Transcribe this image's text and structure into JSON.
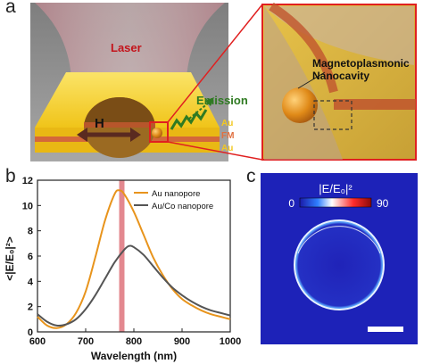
{
  "panels": {
    "a": "a",
    "b": "b",
    "c": "c"
  },
  "panel_a": {
    "laser_label": "Laser",
    "emission_label": "Emission",
    "field_label": "H",
    "layer_labels": [
      "Au",
      "FM",
      "Au"
    ],
    "inset_label": [
      "Magnetoplasmonic",
      "Nanocavity"
    ],
    "colors": {
      "gold": "#f2cf2a",
      "fm_layer": "#d8703a",
      "laser_text": "#c4141b",
      "emission_text": "#2f7a22",
      "beam": "#c89aa0",
      "background": "#8f8f8f"
    }
  },
  "chart_data": {
    "type": "line",
    "xlabel": "Wavelength (nm)",
    "ylabel": "<|E/E₀|²>",
    "xlim": [
      600,
      1000
    ],
    "ylim": [
      0,
      12
    ],
    "xticks": [
      600,
      700,
      800,
      900,
      1000
    ],
    "yticks": [
      0,
      2,
      4,
      6,
      8,
      10,
      12
    ],
    "legend_position": "top-right",
    "highlight_wavelength": 775,
    "series": [
      {
        "name": "Au nanopore",
        "color": "#e8941c",
        "x": [
          600,
          620,
          640,
          660,
          680,
          700,
          720,
          740,
          760,
          770,
          780,
          800,
          820,
          840,
          860,
          880,
          900,
          920,
          940,
          960,
          980,
          1000
        ],
        "y": [
          1.2,
          0.5,
          0.3,
          0.6,
          1.5,
          3.2,
          5.9,
          8.8,
          10.9,
          11.2,
          10.9,
          9.5,
          7.7,
          5.9,
          4.5,
          3.4,
          2.6,
          2.1,
          1.7,
          1.4,
          1.2,
          1.0
        ]
      },
      {
        "name": "Au/Co nanopore",
        "color": "#555555",
        "x": [
          600,
          620,
          640,
          660,
          680,
          700,
          720,
          740,
          760,
          780,
          790,
          800,
          820,
          840,
          860,
          880,
          900,
          920,
          940,
          960,
          980,
          1000
        ],
        "y": [
          1.4,
          0.8,
          0.5,
          0.6,
          1.0,
          1.8,
          2.9,
          4.2,
          5.5,
          6.5,
          6.8,
          6.7,
          6.1,
          5.2,
          4.3,
          3.5,
          2.9,
          2.4,
          2.0,
          1.7,
          1.5,
          1.3
        ]
      }
    ]
  },
  "panel_c": {
    "colorbar_label": "|E/E₀|²",
    "colorbar_min": "0",
    "colorbar_max": "90",
    "colors": {
      "background": "#1d22b8",
      "ring": "#ffffff"
    }
  }
}
